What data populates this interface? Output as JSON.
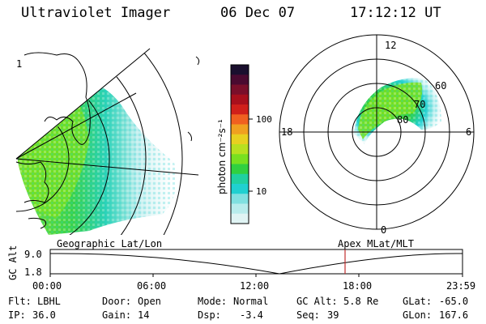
{
  "header": {
    "title": "Ultraviolet Imager",
    "date": "06 Dec 07",
    "time": "17:12:12 UT"
  },
  "colorbar": {
    "label": "photon cm⁻²s⁻¹",
    "ticks": [
      "100",
      "10"
    ],
    "colors": [
      "#1a0f2e",
      "#4a0a30",
      "#7a0f2a",
      "#a8101c",
      "#d0201a",
      "#f06020",
      "#f0a020",
      "#e8d020",
      "#b8e020",
      "#78e020",
      "#30d040",
      "#20d0a0",
      "#20d0d0",
      "#80e0e0",
      "#b8ecec",
      "#e0f4f4"
    ]
  },
  "left_panel": {
    "label": "Geographic Lat/Lon",
    "pole_number": "1"
  },
  "right_panel": {
    "label": "Apex MLat/MLT",
    "mlt_labels": {
      "top": "12",
      "left": "18",
      "right": "6",
      "bottom": "0"
    },
    "lat_labels": [
      "60",
      "70",
      "80"
    ]
  },
  "timeline": {
    "ylabel": "GC Alt",
    "yticks": [
      "9.0",
      "1.8"
    ],
    "xticks": [
      "00:00",
      "06:00",
      "12:00",
      "18:00",
      "23:59"
    ],
    "marker_color": "#c03030"
  },
  "info": {
    "row1": [
      {
        "label": "Flt:",
        "value": "LBHL"
      },
      {
        "label": "Door:",
        "value": "Open"
      },
      {
        "label": "Mode:",
        "value": "Normal"
      },
      {
        "label": "GC Alt:",
        "value": "5.8 Re"
      },
      {
        "label": "GLat:",
        "value": "-65.0"
      }
    ],
    "row2": [
      {
        "label": "IP:",
        "value": "36.0"
      },
      {
        "label": "Gain:",
        "value": "14"
      },
      {
        "label": "Dsp:",
        "value": "-3.4"
      },
      {
        "label": "Seq:",
        "value": "39"
      },
      {
        "label": "GLon:",
        "value": "167.6"
      }
    ]
  }
}
